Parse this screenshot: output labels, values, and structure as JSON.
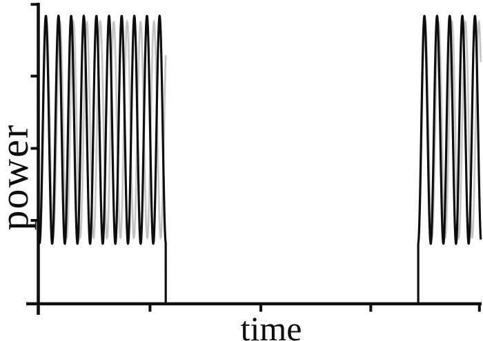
{
  "figure": {
    "background": "#ffffff",
    "ink_color": "#0e0e0e",
    "ghost_color": "#8c8c8c"
  },
  "chart_data": {
    "type": "line",
    "title": "",
    "xlabel": "time",
    "ylabel": "power",
    "x_range": [
      0,
      1
    ],
    "y_range": [
      0,
      1
    ],
    "tick_labels": "none",
    "x_tick_positions": [
      0,
      0.252,
      0.502,
      0.75,
      0.995
    ],
    "y_tick_positions": [
      0,
      0.278,
      0.518,
      0.759,
      0.998
    ],
    "grid": false,
    "legend": "none",
    "waveform": {
      "description": "Two bursts of high-frequency sinusoidal power oscillation separated by a quiet interval at zero power; a faint secondary (moire/ghost) oscillation weaves through each burst.",
      "baseline_power": 0,
      "oscillation_min_power": 0.2,
      "oscillation_max_power": 0.96,
      "oscillation_period_t": 0.0285,
      "bursts": [
        {
          "t_start": 0.003,
          "t_end": 0.2875,
          "first_peak_t": 0.0171,
          "cycles": 10,
          "ends_with_drop_to_baseline": true
        },
        {
          "t_start": 0.857,
          "t_end": 0.9984,
          "first_peak_t": 0.871,
          "cycles": 5,
          "ends_with_drop_to_baseline": false
        }
      ],
      "ghost": {
        "period_t": 0.0303,
        "min_power": 0.22,
        "max_power": 0.94,
        "peak_offset_t": 0.0015
      }
    }
  }
}
